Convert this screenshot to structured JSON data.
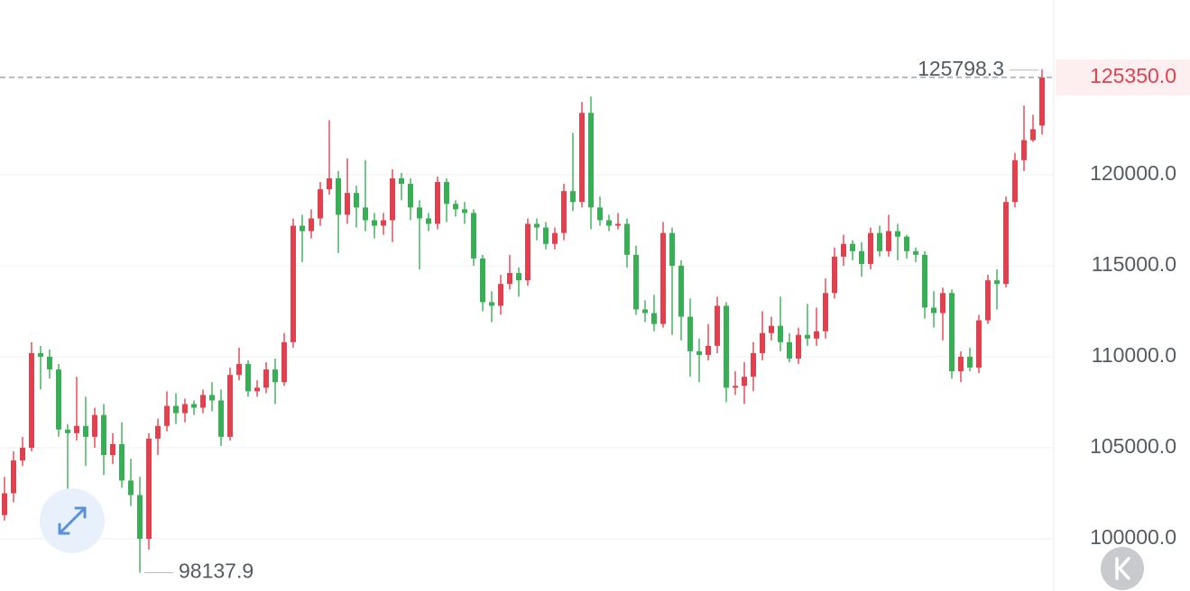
{
  "chart_data": {
    "type": "candlestick",
    "up_color": "#e0414f",
    "down_color": "#3aae57",
    "ylim": [
      97130,
      129600
    ],
    "yticks": [
      {
        "value": 100000,
        "label": "100000.0"
      },
      {
        "value": 105000,
        "label": "105000.0"
      },
      {
        "value": 110000,
        "label": "110000.0"
      },
      {
        "value": 115000,
        "label": "115000.0"
      },
      {
        "value": 120000,
        "label": "120000.0"
      }
    ],
    "grid": true,
    "last_price_label": "125350.0",
    "open": [
      101300,
      102500,
      104300,
      105000,
      110200,
      110000,
      109300,
      106000,
      105800,
      106200,
      105600,
      106800,
      104600,
      105200,
      103200,
      102400,
      100000,
      105500,
      106200,
      107300,
      106900,
      107400,
      107200,
      107900,
      107600,
      105600,
      109000,
      109600,
      108100,
      108300,
      109300,
      108600,
      110800,
      117200,
      116900,
      117600,
      119200,
      119800,
      117800,
      119000,
      118200,
      117500,
      117200,
      117500,
      119800,
      119500,
      118200,
      117600,
      117300,
      119600,
      118400,
      118100,
      117900,
      115400,
      113000,
      112800,
      114000,
      114600,
      114200,
      117300,
      117100,
      116200,
      116800,
      119100,
      118500,
      123400,
      118200,
      117500,
      117200,
      117300,
      115600,
      112600,
      112400,
      111800,
      116800,
      115000,
      112200,
      110300,
      110100,
      110600,
      112800,
      108300,
      108400,
      108900,
      110200,
      111300,
      111700,
      110800,
      109900,
      111200,
      111000,
      111400,
      113500,
      115500,
      116200,
      115800,
      115100,
      116800,
      115800,
      116900,
      116600,
      115800,
      115600,
      112700,
      112400,
      113500,
      109200,
      110000,
      109400,
      112000,
      114200,
      114000,
      118500,
      120800,
      121900,
      122700
    ],
    "high": [
      103400,
      104800,
      105600,
      110800,
      110600,
      110400,
      109600,
      106300,
      108900,
      107800,
      107200,
      107400,
      105800,
      106400,
      104400,
      103400,
      105800,
      106600,
      108100,
      108000,
      107700,
      107600,
      108200,
      108600,
      108200,
      109400,
      110500,
      109800,
      108700,
      109700,
      109900,
      111300,
      117600,
      117800,
      118100,
      119600,
      123000,
      120200,
      120900,
      119400,
      120800,
      117900,
      117900,
      120300,
      120100,
      119800,
      118600,
      117900,
      119900,
      119800,
      118600,
      118500,
      118100,
      115600,
      113600,
      114500,
      115600,
      114900,
      117600,
      117600,
      117400,
      117100,
      119500,
      122300,
      124000,
      124300,
      118800,
      117800,
      117900,
      117600,
      116100,
      113100,
      113400,
      117400,
      117100,
      115300,
      113200,
      111000,
      111800,
      113300,
      113000,
      109200,
      109700,
      110800,
      112500,
      112200,
      113300,
      111300,
      111600,
      112900,
      112700,
      114300,
      116000,
      116700,
      116400,
      116300,
      117100,
      117200,
      117800,
      117300,
      116700,
      116000,
      115800,
      113600,
      113800,
      113700,
      110300,
      110500,
      112300,
      114500,
      114800,
      118800,
      121200,
      123800,
      123300,
      125798.3
    ],
    "low": [
      101000,
      102000,
      104000,
      104800,
      108200,
      108800,
      105600,
      102600,
      105400,
      104000,
      105000,
      103500,
      104100,
      102800,
      101800,
      98137.9,
      99400,
      104600,
      105900,
      106300,
      106400,
      106800,
      106900,
      107000,
      105100,
      105400,
      108700,
      107800,
      107800,
      108000,
      107400,
      108400,
      110500,
      115200,
      116500,
      117200,
      118900,
      115700,
      117300,
      117100,
      116900,
      116500,
      116700,
      116300,
      118600,
      117500,
      114800,
      116900,
      117000,
      117400,
      117700,
      117300,
      115000,
      112500,
      111900,
      112300,
      113700,
      113300,
      113900,
      116400,
      115900,
      115900,
      116400,
      118000,
      118200,
      117000,
      117200,
      116900,
      117000,
      114900,
      112300,
      111900,
      111400,
      111600,
      111200,
      110900,
      108900,
      108600,
      109800,
      110200,
      107500,
      107900,
      107400,
      108100,
      109800,
      110900,
      110300,
      109700,
      109600,
      110600,
      110600,
      111000,
      113200,
      115000,
      115300,
      114400,
      114800,
      115500,
      115500,
      115300,
      115400,
      115200,
      112100,
      111600,
      110900,
      108800,
      108600,
      109200,
      109100,
      111800,
      112600,
      113800,
      118200,
      120200,
      121800,
      122200
    ],
    "close": [
      102500,
      104300,
      105000,
      110200,
      110000,
      109300,
      106000,
      105800,
      106200,
      105600,
      106800,
      104600,
      105200,
      103200,
      102400,
      100000,
      105500,
      106200,
      107300,
      106900,
      107400,
      107200,
      107900,
      107600,
      105600,
      109000,
      109600,
      108100,
      108300,
      109300,
      108600,
      110800,
      117200,
      116900,
      117600,
      119200,
      119800,
      117800,
      119000,
      118200,
      117500,
      117200,
      117500,
      119800,
      119500,
      118200,
      117600,
      117300,
      119600,
      118400,
      118100,
      117900,
      115400,
      113000,
      112800,
      114000,
      114600,
      114200,
      117300,
      117100,
      116200,
      116800,
      119100,
      118500,
      123400,
      118200,
      117500,
      117200,
      117300,
      115600,
      112600,
      112400,
      111800,
      116800,
      115000,
      112200,
      110300,
      110100,
      110600,
      112800,
      108300,
      108400,
      108900,
      110200,
      111300,
      111700,
      110800,
      109900,
      111200,
      111000,
      111400,
      113500,
      115500,
      116200,
      115800,
      115100,
      116800,
      115800,
      116900,
      116600,
      115800,
      115600,
      112700,
      112400,
      113500,
      109200,
      110000,
      109400,
      112000,
      114200,
      114000,
      118500,
      120800,
      121900,
      122500,
      125350
    ]
  }
}
